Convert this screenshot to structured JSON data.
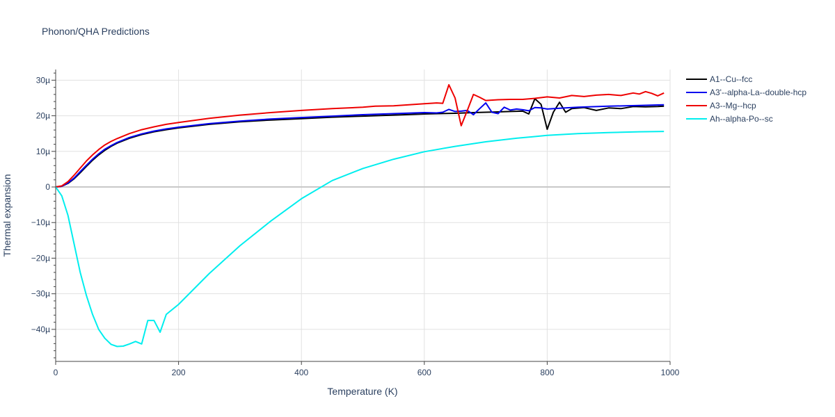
{
  "chart_data": {
    "type": "line",
    "title": "Phonon/QHA Predictions",
    "xlabel": "Temperature (K)",
    "ylabel": "Thermal expansion",
    "xlim": [
      0,
      1000
    ],
    "ylim": [
      -49,
      33
    ],
    "xticks": [
      0,
      200,
      400,
      600,
      800,
      1000
    ],
    "xtick_labels": [
      "0",
      "200",
      "400",
      "600",
      "800",
      "1000"
    ],
    "yticks": [
      -40,
      -30,
      -20,
      -10,
      0,
      10,
      20,
      30
    ],
    "ytick_labels": [
      "−40µ",
      "−30µ",
      "−20µ",
      "−10µ",
      "0",
      "10µ",
      "20µ",
      "30µ"
    ],
    "y_unit_scale": "1e-6",
    "grid": true,
    "legend_position": "right",
    "series": [
      {
        "name": "A1--Cu--fcc",
        "color": "#000000",
        "x": [
          0,
          10,
          20,
          30,
          40,
          50,
          60,
          70,
          80,
          90,
          100,
          120,
          140,
          160,
          180,
          200,
          250,
          300,
          350,
          400,
          450,
          500,
          550,
          600,
          650,
          680,
          700,
          720,
          740,
          760,
          770,
          780,
          790,
          800,
          810,
          820,
          830,
          840,
          860,
          880,
          900,
          920,
          940,
          960,
          980,
          990
        ],
        "y": [
          0,
          0.2,
          1.0,
          2.3,
          4.0,
          5.8,
          7.5,
          9.0,
          10.3,
          11.4,
          12.3,
          13.7,
          14.7,
          15.5,
          16.1,
          16.6,
          17.6,
          18.3,
          18.8,
          19.2,
          19.6,
          19.9,
          20.2,
          20.5,
          20.7,
          20.9,
          21.0,
          21.1,
          21.2,
          21.3,
          20.5,
          24.8,
          23.2,
          16.2,
          21.0,
          23.8,
          21.0,
          22.0,
          22.3,
          21.5,
          22.2,
          22.0,
          22.6,
          22.5,
          22.6,
          22.7
        ]
      },
      {
        "name": "A3'--alpha-La--double-hcp",
        "color": "#0000ee",
        "x": [
          0,
          10,
          20,
          30,
          40,
          50,
          60,
          70,
          80,
          90,
          100,
          120,
          140,
          160,
          180,
          200,
          250,
          300,
          350,
          400,
          450,
          500,
          550,
          600,
          620,
          630,
          640,
          650,
          660,
          670,
          680,
          690,
          700,
          710,
          720,
          730,
          740,
          750,
          760,
          770,
          780,
          790,
          800,
          820,
          850,
          900,
          950,
          990
        ],
        "y": [
          0,
          0.2,
          1.1,
          2.5,
          4.3,
          6.1,
          7.8,
          9.3,
          10.6,
          11.6,
          12.5,
          13.9,
          14.9,
          15.7,
          16.3,
          16.8,
          17.8,
          18.5,
          19.1,
          19.5,
          19.9,
          20.3,
          20.6,
          20.9,
          20.8,
          21.0,
          21.8,
          21.2,
          21.3,
          21.5,
          20.3,
          22.0,
          23.6,
          21.0,
          20.6,
          22.4,
          21.6,
          21.9,
          21.7,
          21.4,
          22.3,
          22.2,
          21.9,
          22.1,
          22.4,
          22.7,
          22.9,
          23.1
        ]
      },
      {
        "name": "A3--Mg--hcp",
        "color": "#ee0000",
        "x": [
          0,
          10,
          20,
          30,
          40,
          50,
          60,
          70,
          80,
          90,
          100,
          120,
          140,
          160,
          180,
          200,
          250,
          300,
          350,
          400,
          450,
          500,
          520,
          550,
          600,
          620,
          630,
          640,
          650,
          660,
          670,
          680,
          690,
          700,
          720,
          740,
          760,
          780,
          800,
          820,
          840,
          860,
          880,
          900,
          920,
          940,
          950,
          960,
          970,
          980,
          990
        ],
        "y": [
          0,
          0.3,
          1.5,
          3.3,
          5.3,
          7.3,
          9.0,
          10.5,
          11.8,
          12.8,
          13.6,
          15.0,
          16.1,
          16.9,
          17.6,
          18.1,
          19.3,
          20.2,
          20.9,
          21.5,
          22.0,
          22.4,
          22.7,
          22.8,
          23.4,
          23.6,
          23.5,
          28.7,
          25.0,
          17.2,
          21.5,
          26.0,
          25.2,
          24.3,
          24.5,
          24.6,
          24.6,
          24.9,
          25.3,
          25.0,
          25.7,
          25.4,
          25.8,
          26.0,
          25.7,
          26.4,
          26.1,
          26.8,
          26.3,
          25.6,
          26.4
        ]
      },
      {
        "name": "Ah--alpha-Po--sc",
        "color": "#00eeee",
        "x": [
          0,
          10,
          20,
          30,
          40,
          50,
          60,
          70,
          80,
          90,
          100,
          110,
          120,
          130,
          140,
          150,
          160,
          170,
          180,
          200,
          250,
          300,
          350,
          400,
          450,
          500,
          550,
          600,
          650,
          700,
          750,
          800,
          850,
          900,
          950,
          990
        ],
        "y": [
          0,
          -2.5,
          -8.0,
          -16.0,
          -24.0,
          -30.5,
          -35.8,
          -40.0,
          -42.5,
          -44.2,
          -44.8,
          -44.7,
          -44.1,
          -43.4,
          -44.1,
          -37.5,
          -37.5,
          -40.8,
          -35.8,
          -33.0,
          -24.3,
          -16.5,
          -9.6,
          -3.3,
          1.8,
          5.2,
          7.8,
          9.9,
          11.4,
          12.7,
          13.7,
          14.5,
          15.0,
          15.3,
          15.5,
          15.6
        ]
      }
    ]
  }
}
